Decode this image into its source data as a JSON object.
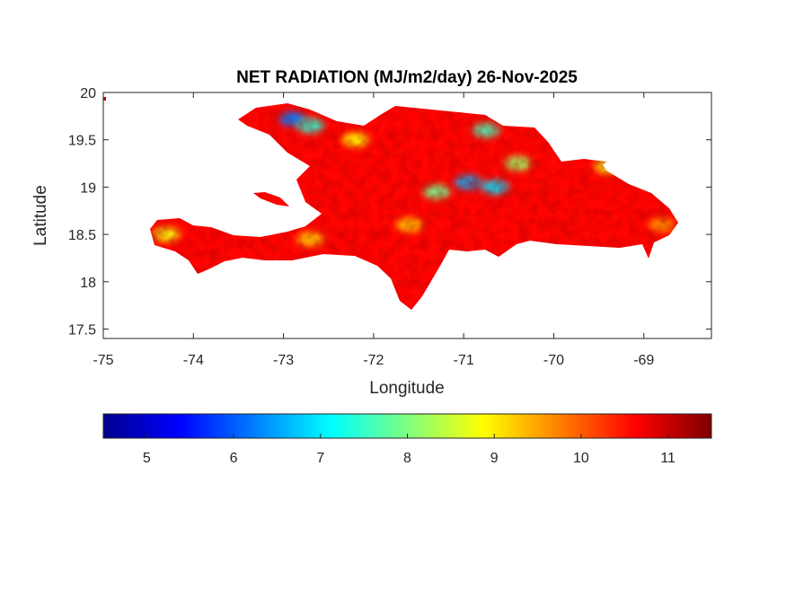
{
  "chart_data": {
    "type": "heatmap",
    "title": "NET RADIATION (MJ/m2/day) 26-Nov-2025",
    "xlabel": "Longitude",
    "ylabel": "Latitude",
    "xlim": [
      -75,
      -68.25
    ],
    "ylim": [
      17.4,
      20
    ],
    "x_ticks": [
      -75,
      -74,
      -73,
      -72,
      -71,
      -70,
      -69
    ],
    "x_tick_labels": [
      "-75",
      "-74",
      "-73",
      "-72",
      "-71",
      "-70",
      "-69"
    ],
    "y_ticks": [
      17.5,
      18,
      18.5,
      19,
      19.5,
      20
    ],
    "y_tick_labels": [
      "17.5",
      "18",
      "18.5",
      "19",
      "19.5",
      "20"
    ],
    "grid": false,
    "colormap": "jet",
    "colorbar": {
      "orientation": "horizontal",
      "location": "below",
      "range": [
        4.5,
        11.5
      ],
      "ticks": [
        5,
        6,
        7,
        8,
        9,
        10,
        11
      ],
      "tick_labels": [
        "5",
        "6",
        "7",
        "8",
        "9",
        "10",
        "11"
      ]
    },
    "field": {
      "region": "Hispaniola",
      "background_value": 10.6,
      "value_range_shown": [
        4.8,
        11.4
      ],
      "features": [
        {
          "lon": -72.9,
          "lat": 19.72,
          "value": 6.2
        },
        {
          "lon": -72.7,
          "lat": 19.65,
          "value": 7.4
        },
        {
          "lon": -70.75,
          "lat": 19.6,
          "value": 7.6
        },
        {
          "lon": -70.95,
          "lat": 19.05,
          "value": 6.6
        },
        {
          "lon": -70.65,
          "lat": 19.0,
          "value": 6.9
        },
        {
          "lon": -71.3,
          "lat": 18.95,
          "value": 7.9
        },
        {
          "lon": -70.4,
          "lat": 19.25,
          "value": 8.2
        },
        {
          "lon": -72.2,
          "lat": 19.5,
          "value": 8.9
        },
        {
          "lon": -74.3,
          "lat": 18.5,
          "value": 8.8
        },
        {
          "lon": -72.7,
          "lat": 18.45,
          "value": 9.2
        },
        {
          "lon": -69.4,
          "lat": 19.22,
          "value": 8.8
        },
        {
          "lon": -71.6,
          "lat": 18.6,
          "value": 9.2
        },
        {
          "lon": -68.8,
          "lat": 18.6,
          "value": 9.6
        }
      ]
    }
  }
}
